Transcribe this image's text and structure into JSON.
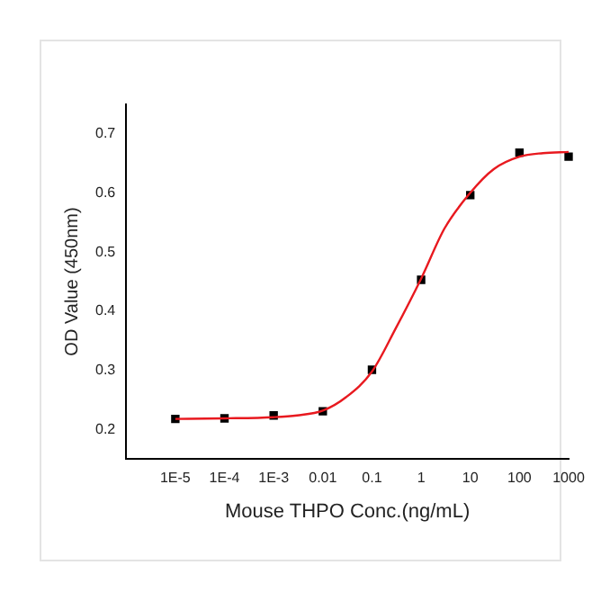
{
  "chart_data": {
    "type": "scatter",
    "xlabel": "Mouse THPO Conc.(ng/mL)",
    "ylabel": "OD Value (450nm)",
    "log": "x",
    "grid": false,
    "legend": false,
    "xlim": [
      1e-06,
      1000
    ],
    "ylim": [
      0.15,
      0.75
    ],
    "xticks": [
      {
        "value": 1e-05,
        "label": "1E-5"
      },
      {
        "value": 0.0001,
        "label": "1E-4"
      },
      {
        "value": 0.001,
        "label": "1E-3"
      },
      {
        "value": 0.01,
        "label": "0.01"
      },
      {
        "value": 0.1,
        "label": "0.1"
      },
      1,
      10,
      100,
      1000
    ],
    "yticks": [
      0.2,
      0.3,
      0.4,
      0.5,
      0.6,
      0.7
    ],
    "series": [
      {
        "type": "scatter",
        "marker": "square",
        "color": "#000000",
        "x": [
          1e-05,
          0.0001,
          0.001,
          0.01,
          0.1,
          1,
          10,
          100,
          1000
        ],
        "values": [
          0.218,
          0.219,
          0.224,
          0.231,
          0.301,
          0.453,
          0.596,
          0.668,
          0.661
        ]
      },
      {
        "type": "line",
        "marker": "none",
        "line_style": "solid",
        "color": "#e8191f",
        "x": [
          1e-05,
          0.0001,
          0.001,
          0.003,
          0.01,
          0.03,
          0.1,
          0.3,
          1,
          3,
          10,
          30,
          100,
          300,
          1000
        ],
        "values": [
          0.218,
          0.219,
          0.221,
          0.224,
          0.232,
          0.255,
          0.298,
          0.37,
          0.455,
          0.54,
          0.6,
          0.64,
          0.661,
          0.667,
          0.669
        ]
      }
    ]
  }
}
